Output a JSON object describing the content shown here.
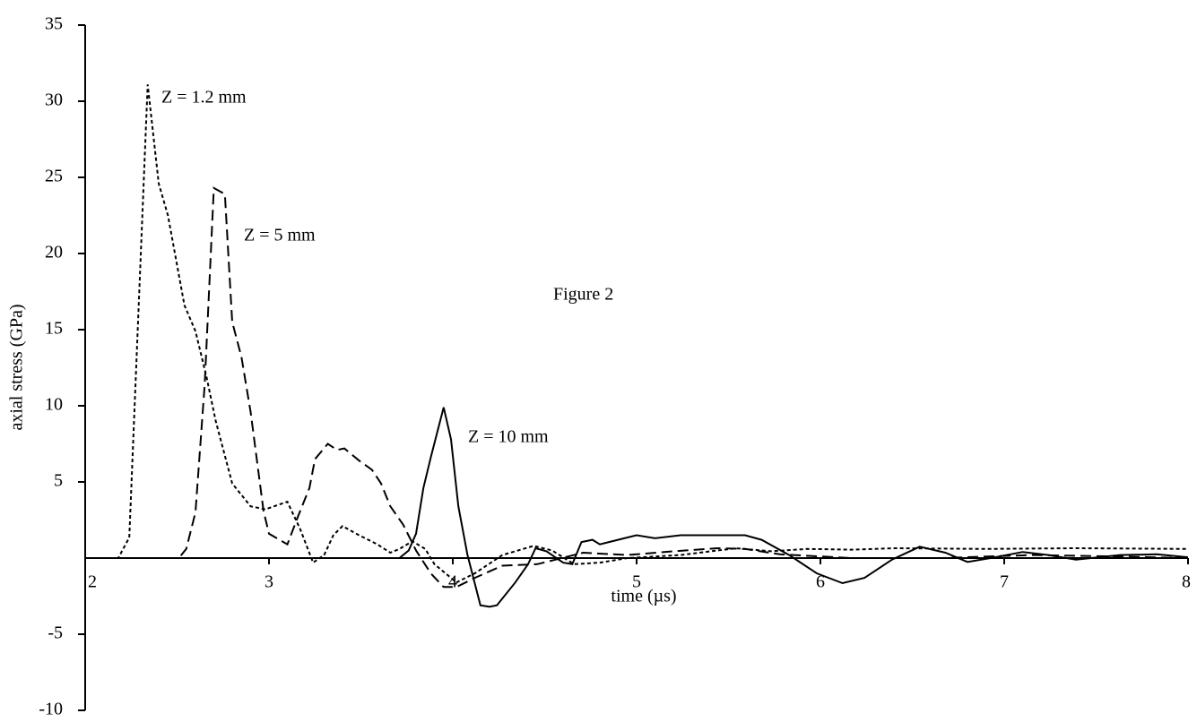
{
  "chart_data": {
    "type": "line",
    "annotation": "Figure 2",
    "x_label": "time (µs)",
    "y_label": "axial stress (GPa)",
    "xlim": [
      2,
      8
    ],
    "xticks": [
      2,
      3,
      4,
      5,
      6,
      7,
      8
    ],
    "ylim": [
      -10,
      35
    ],
    "yticks": [
      -10,
      -5,
      5,
      10,
      15,
      20,
      25,
      30,
      35
    ],
    "series": [
      {
        "name": "Z = 1.2 mm",
        "color": "#000000",
        "style": "dotted",
        "x": [
          2,
          2.18,
          2.24,
          2.34,
          2.4,
          2.45,
          2.54,
          2.6,
          2.66,
          2.71,
          2.8,
          2.9,
          2.98,
          3.1,
          3.17,
          3.24,
          3.3,
          3.35,
          3.4,
          3.49,
          3.59,
          3.66,
          3.71,
          3.78,
          3.85,
          3.9,
          4.02,
          4.12,
          4.27,
          4.44,
          4.54,
          4.66,
          4.8,
          4.95,
          5.24,
          5.54,
          5.73,
          5.93,
          6.17,
          6.41,
          6.9,
          7.39,
          8.0
        ],
        "values": [
          0,
          0,
          1.35,
          31.1,
          24.6,
          22.5,
          16.6,
          14.9,
          11.9,
          9.0,
          4.9,
          3.4,
          3.2,
          3.7,
          1.9,
          -0.3,
          0.2,
          1.5,
          2.1,
          1.5,
          0.9,
          0.35,
          0.6,
          1.1,
          0.6,
          -0.4,
          -1.6,
          -1.0,
          0.2,
          0.8,
          0.5,
          -0.4,
          -0.3,
          0,
          0.2,
          0.65,
          0.45,
          0.6,
          0.55,
          0.65,
          0.6,
          0.65,
          0.6
        ]
      },
      {
        "name": "Z = 5 mm",
        "color": "#000000",
        "style": "dashed",
        "x": [
          2,
          2.51,
          2.55,
          2.6,
          2.65,
          2.7,
          2.76,
          2.8,
          2.85,
          2.9,
          2.97,
          3.0,
          3.1,
          3.16,
          3.22,
          3.25,
          3.32,
          3.37,
          3.41,
          3.49,
          3.56,
          3.61,
          3.66,
          3.73,
          3.8,
          3.88,
          3.95,
          4.02,
          4.12,
          4.27,
          4.46,
          4.56,
          4.71,
          4.95,
          5.2,
          5.44,
          5.59,
          5.78,
          6.17,
          6.66,
          7.15,
          7.63,
          8.0
        ],
        "values": [
          0,
          0,
          0.6,
          3.0,
          11.4,
          24.3,
          23.9,
          15.5,
          13.2,
          9.6,
          3.1,
          1.6,
          0.9,
          2.8,
          4.6,
          6.5,
          7.5,
          7.1,
          7.2,
          6.4,
          5.8,
          4.9,
          3.4,
          2.2,
          0.5,
          -1.0,
          -1.9,
          -1.9,
          -1.3,
          -0.5,
          -0.4,
          -0.1,
          0.35,
          0.2,
          0.45,
          0.65,
          0.6,
          0.25,
          0,
          0,
          0.2,
          0.1,
          0
        ]
      },
      {
        "name": "Z = 10 mm",
        "color": "#000000",
        "style": "solid",
        "x": [
          2,
          3.71,
          3.76,
          3.8,
          3.84,
          3.88,
          3.95,
          3.99,
          4.03,
          4.08,
          4.15,
          4.2,
          4.24,
          4.34,
          4.41,
          4.45,
          4.51,
          4.6,
          4.65,
          4.7,
          4.76,
          4.8,
          4.85,
          4.95,
          5.0,
          5.1,
          5.24,
          5.44,
          5.59,
          5.68,
          5.83,
          5.98,
          6.12,
          6.24,
          6.39,
          6.54,
          6.68,
          6.8,
          6.95,
          7.1,
          7.24,
          7.39,
          7.63,
          7.83,
          8.0
        ],
        "values": [
          0,
          0,
          0.5,
          1.6,
          4.6,
          6.6,
          9.9,
          7.8,
          3.4,
          0.2,
          -3.1,
          -3.2,
          -3.1,
          -1.6,
          -0.4,
          0.65,
          0.45,
          -0.3,
          -0.4,
          1.05,
          1.2,
          0.9,
          1.05,
          1.35,
          1.5,
          1.3,
          1.5,
          1.5,
          1.5,
          1.2,
          0.2,
          -1.0,
          -1.65,
          -1.3,
          -0.1,
          0.75,
          0.35,
          -0.25,
          0.05,
          0.4,
          0.2,
          -0.1,
          0.2,
          0.25,
          0.05
        ]
      }
    ]
  }
}
